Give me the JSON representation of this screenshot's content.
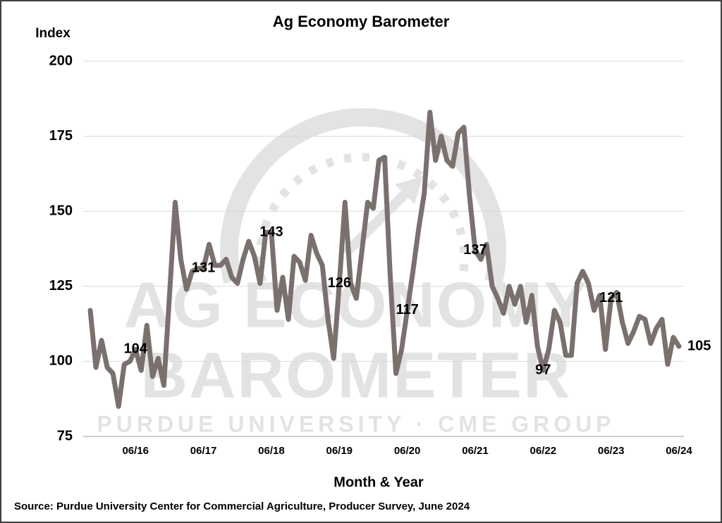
{
  "chart_data": {
    "type": "line",
    "title": "Ag Economy Barometer",
    "y_axis_label": "Index",
    "x_axis_label": "Month & Year",
    "source": "Source: Purdue University Center for Commercial Agriculture, Producer Survey, June 2024",
    "watermark": [
      "AG ECONOMY",
      "BAROMETER",
      "PURDUE UNIVERSITY · CME GROUP"
    ],
    "categories": [
      null,
      null,
      null,
      null,
      null,
      null,
      null,
      null,
      "06/16",
      null,
      null,
      null,
      null,
      null,
      null,
      null,
      null,
      null,
      null,
      null,
      "06/17",
      null,
      null,
      null,
      null,
      null,
      null,
      null,
      null,
      null,
      null,
      null,
      "06/18",
      null,
      null,
      null,
      null,
      null,
      null,
      null,
      null,
      null,
      null,
      null,
      "06/19",
      null,
      null,
      null,
      null,
      null,
      null,
      null,
      null,
      null,
      null,
      null,
      "06/20",
      null,
      null,
      null,
      null,
      null,
      null,
      null,
      null,
      null,
      null,
      null,
      "06/21",
      null,
      null,
      null,
      null,
      null,
      null,
      null,
      null,
      null,
      null,
      null,
      "06/22",
      null,
      null,
      null,
      null,
      null,
      null,
      null,
      null,
      null,
      null,
      null,
      "06/23",
      null,
      null,
      null,
      null,
      null,
      null,
      null,
      null,
      null,
      null,
      null,
      "06/24"
    ],
    "series": [
      {
        "name": "Ag Economy Barometer",
        "color": "#7a716e",
        "values": [
          117,
          98,
          107,
          98,
          96,
          85,
          99,
          100,
          104,
          97,
          112,
          95,
          101,
          92,
          122,
          153,
          134,
          124,
          130,
          131,
          131,
          139,
          132,
          132,
          134,
          128,
          126,
          134,
          140,
          135,
          126,
          143,
          143,
          117,
          128,
          114,
          135,
          133,
          127,
          142,
          136,
          132,
          114,
          101,
          126,
          153,
          126,
          121,
          137,
          153,
          151,
          167,
          168,
          128,
          96,
          104,
          117,
          130,
          144,
          156,
          183,
          167,
          175,
          167,
          165,
          176,
          178,
          155,
          137,
          134,
          139,
          125,
          121,
          116,
          125,
          119,
          125,
          113,
          122,
          105,
          97,
          104,
          117,
          113,
          102,
          102,
          126,
          130,
          126,
          117,
          122,
          104,
          121,
          123,
          113,
          106,
          110,
          115,
          114,
          106,
          111,
          114,
          99,
          108,
          105
        ],
        "value_labels": [
          null,
          null,
          null,
          null,
          null,
          null,
          null,
          null,
          "104",
          null,
          null,
          null,
          null,
          null,
          null,
          null,
          null,
          null,
          null,
          null,
          "131",
          null,
          null,
          null,
          null,
          null,
          null,
          null,
          null,
          null,
          null,
          null,
          "143",
          null,
          null,
          null,
          null,
          null,
          null,
          null,
          null,
          null,
          null,
          null,
          "126",
          null,
          null,
          null,
          null,
          null,
          null,
          null,
          null,
          null,
          null,
          null,
          "117",
          null,
          null,
          null,
          null,
          null,
          null,
          null,
          null,
          null,
          null,
          null,
          "137",
          null,
          null,
          null,
          null,
          null,
          null,
          null,
          null,
          null,
          null,
          null,
          "97",
          null,
          null,
          null,
          null,
          null,
          null,
          null,
          null,
          null,
          null,
          null,
          "121",
          null,
          null,
          null,
          null,
          null,
          null,
          null,
          null,
          null,
          null,
          null,
          "105"
        ]
      }
    ],
    "ylim": [
      75,
      200
    ],
    "yticks": [
      75,
      100,
      125,
      150,
      175,
      200
    ],
    "grid": true
  }
}
